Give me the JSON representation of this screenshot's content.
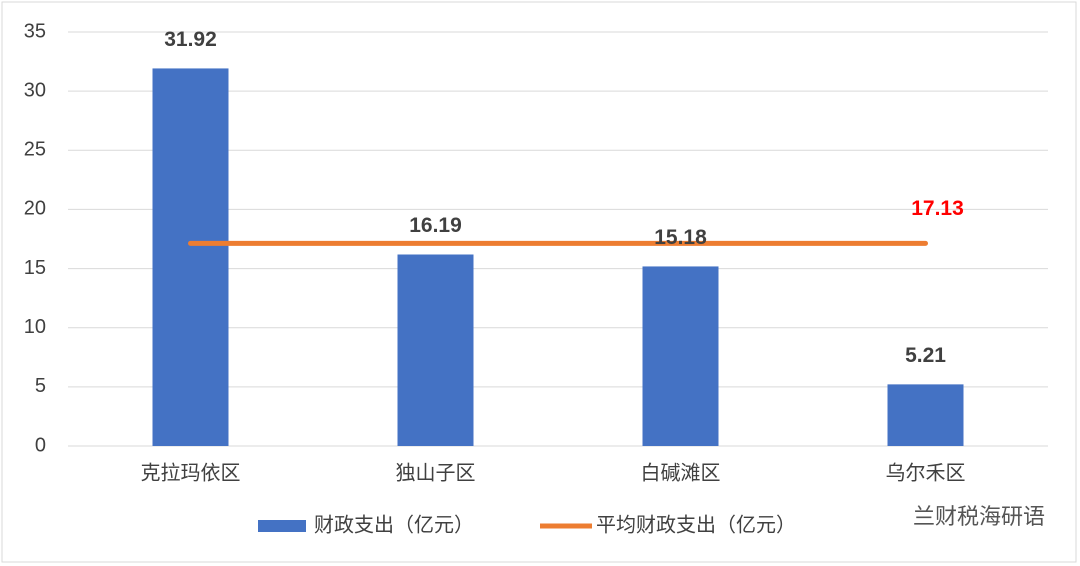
{
  "chart_data": {
    "type": "bar",
    "categories": [
      "克拉玛依区",
      "独山子区",
      "白碱滩区",
      "乌尔禾区"
    ],
    "series": [
      {
        "name": "财政支出（亿元）",
        "type": "bar",
        "color": "#4472c4",
        "values": [
          31.92,
          16.19,
          15.18,
          5.21
        ]
      },
      {
        "name": "平均财政支出（亿元）",
        "type": "line",
        "color": "#ed7d31",
        "values": [
          17.13,
          17.13,
          17.13,
          17.13
        ],
        "value_labels": [
          null,
          null,
          null,
          "17.13"
        ],
        "label_color": "#ff0000"
      }
    ],
    "ylim": [
      0,
      35
    ],
    "yticks": [
      0,
      5,
      10,
      15,
      20,
      25,
      30,
      35
    ],
    "grid": true,
    "legend": "bottom",
    "watermark": "兰财税海研语"
  }
}
